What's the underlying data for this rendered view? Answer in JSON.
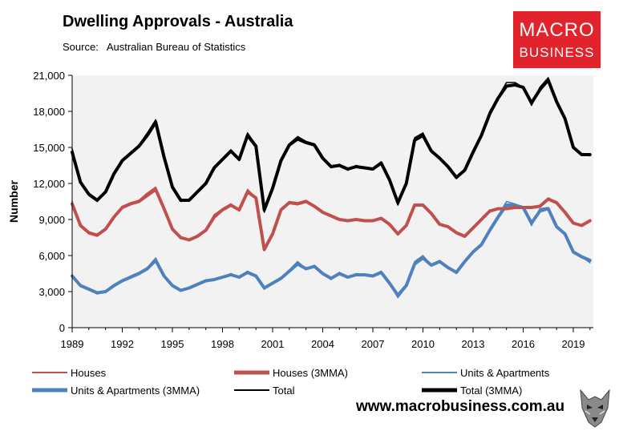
{
  "title": "Dwelling Approvals - Australia",
  "source_label": "Source:",
  "source_name": "Australian Bureau of Statistics",
  "logo": {
    "line1": "MACRO",
    "line2": "BUSINESS",
    "color": "#e3232b"
  },
  "website": "www.macrobusiness.com.au",
  "colors": {
    "houses": "#c0504d",
    "units": "#4f81bd",
    "total": "#000000",
    "plot_bg": "#f2f2f2"
  },
  "chart_data": {
    "type": "line",
    "ylabel": "Number",
    "xlabel": "",
    "ylim": [
      0,
      21000
    ],
    "yticks": [
      "0",
      "3,000",
      "6,000",
      "9,000",
      "12,000",
      "15,000",
      "18,000",
      "21,000"
    ],
    "xlim": [
      1989.0,
      2020.2
    ],
    "xticks": [
      "1989",
      "1992",
      "1995",
      "1998",
      "2001",
      "2004",
      "2007",
      "2010",
      "2013",
      "2016",
      "2019"
    ],
    "grid": false,
    "legend_placement": "bottom",
    "x": [
      1989.0,
      1989.5,
      1990.0,
      1990.5,
      1991.0,
      1991.5,
      1992.0,
      1992.5,
      1993.0,
      1993.5,
      1994.0,
      1994.5,
      1995.0,
      1995.5,
      1996.0,
      1996.5,
      1997.0,
      1997.5,
      1998.0,
      1998.5,
      1999.0,
      1999.5,
      2000.0,
      2000.5,
      2001.0,
      2001.5,
      2002.0,
      2002.5,
      2003.0,
      2003.5,
      2004.0,
      2004.5,
      2005.0,
      2005.5,
      2006.0,
      2006.5,
      2007.0,
      2007.5,
      2008.0,
      2008.5,
      2009.0,
      2009.5,
      2010.0,
      2010.5,
      2011.0,
      2011.5,
      2012.0,
      2012.5,
      2013.0,
      2013.5,
      2014.0,
      2014.5,
      2015.0,
      2015.5,
      2016.0,
      2016.5,
      2017.0,
      2017.5,
      2018.0,
      2018.5,
      2019.0,
      2019.5,
      2020.0
    ],
    "series": [
      {
        "name": "Houses",
        "style": "thin",
        "color_key": "houses",
        "values": [
          10500,
          8500,
          7800,
          7600,
          8200,
          9300,
          10100,
          10400,
          10600,
          11200,
          11700,
          9800,
          8100,
          7400,
          7300,
          7700,
          8200,
          9400,
          9900,
          10300,
          9700,
          11500,
          10800,
          6400,
          7900,
          9900,
          10500,
          10400,
          10600,
          10100,
          9600,
          9300,
          9000,
          8900,
          9000,
          8900,
          8900,
          9100,
          8600,
          7700,
          8500,
          10300,
          10200,
          9500,
          8600,
          8400,
          7900,
          7600,
          8300,
          9100,
          9800,
          9900,
          9900,
          10100,
          10000,
          10000,
          10100,
          10800,
          10400,
          9600,
          8700,
          8500,
          8900
        ]
      },
      {
        "name": "Houses (3MMA)",
        "style": "thick",
        "color_key": "houses",
        "values": [
          10300,
          8500,
          7900,
          7700,
          8200,
          9200,
          10000,
          10300,
          10500,
          11000,
          11500,
          9900,
          8200,
          7500,
          7300,
          7600,
          8100,
          9200,
          9800,
          10200,
          9800,
          11300,
          10800,
          6500,
          7800,
          9800,
          10400,
          10300,
          10500,
          10100,
          9600,
          9300,
          9000,
          8900,
          9000,
          8900,
          8900,
          9100,
          8600,
          7800,
          8500,
          10200,
          10200,
          9500,
          8600,
          8400,
          7900,
          7600,
          8300,
          9000,
          9700,
          9900,
          9900,
          10000,
          10000,
          10000,
          10100,
          10700,
          10400,
          9600,
          8700,
          8500,
          8900
        ]
      },
      {
        "name": "Units & Apartments",
        "style": "thin",
        "color_key": "units",
        "values": [
          4400,
          3500,
          3200,
          2800,
          3000,
          3500,
          3900,
          4300,
          4600,
          5000,
          5800,
          4300,
          3500,
          3100,
          3300,
          3600,
          3900,
          4000,
          4200,
          4500,
          4200,
          4700,
          4300,
          3200,
          3700,
          4100,
          4800,
          5500,
          4900,
          5200,
          4500,
          4000,
          4600,
          4200,
          4500,
          4400,
          4300,
          4700,
          3700,
          2500,
          3400,
          5500,
          6000,
          5200,
          5600,
          5000,
          4500,
          5600,
          6400,
          7000,
          8200,
          9300,
          10500,
          10300,
          10000,
          8500,
          9900,
          10000,
          8300,
          7800,
          6200,
          5900,
          5400
        ]
      },
      {
        "name": "Units & Apartments (3MMA)",
        "style": "thick",
        "color_key": "units",
        "values": [
          4300,
          3500,
          3200,
          2900,
          3000,
          3500,
          3900,
          4200,
          4500,
          4900,
          5600,
          4300,
          3500,
          3100,
          3300,
          3600,
          3900,
          4000,
          4200,
          4400,
          4200,
          4600,
          4300,
          3300,
          3700,
          4100,
          4700,
          5300,
          4900,
          5100,
          4500,
          4100,
          4500,
          4200,
          4400,
          4400,
          4300,
          4600,
          3700,
          2700,
          3500,
          5300,
          5800,
          5200,
          5500,
          5000,
          4600,
          5500,
          6300,
          6900,
          8100,
          9200,
          10200,
          10200,
          10000,
          8700,
          9700,
          9900,
          8400,
          7800,
          6300,
          5900,
          5600
        ]
      },
      {
        "name": "Total",
        "style": "thin",
        "color_key": "total",
        "values": [
          14900,
          12100,
          11000,
          10500,
          11300,
          12900,
          14000,
          14600,
          15200,
          16200,
          17300,
          14100,
          11600,
          10500,
          10600,
          11300,
          12100,
          13400,
          14100,
          14800,
          13900,
          16200,
          15200,
          9600,
          11600,
          14000,
          15300,
          15900,
          15500,
          15300,
          14100,
          13300,
          13600,
          13100,
          13500,
          13300,
          13200,
          13800,
          12300,
          10200,
          11900,
          15800,
          16200,
          14700,
          14200,
          13400,
          12400,
          13200,
          14700,
          16100,
          18000,
          19200,
          20400,
          20400,
          20000,
          18500,
          20000,
          20800,
          18700,
          17400,
          14900,
          14400,
          14300
        ]
      },
      {
        "name": "Total (3MMA)",
        "style": "thick",
        "color_key": "total",
        "values": [
          14600,
          12100,
          11100,
          10600,
          11300,
          12800,
          13900,
          14500,
          15100,
          16000,
          17100,
          14200,
          11700,
          10600,
          10600,
          11300,
          12000,
          13300,
          14000,
          14700,
          14000,
          16000,
          15100,
          9800,
          11600,
          13900,
          15200,
          15700,
          15400,
          15200,
          14100,
          13400,
          13500,
          13200,
          13400,
          13300,
          13200,
          13700,
          12300,
          10400,
          12000,
          15600,
          16000,
          14700,
          14100,
          13400,
          12500,
          13100,
          14600,
          16000,
          17800,
          19100,
          20100,
          20200,
          20000,
          18700,
          19800,
          20600,
          18800,
          17400,
          15000,
          14400,
          14400
        ]
      }
    ]
  }
}
